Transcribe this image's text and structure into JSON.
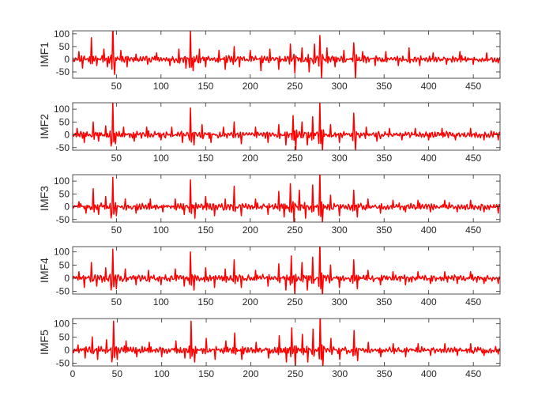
{
  "chart_data": [
    {
      "type": "line",
      "ylabel": "IMF1",
      "xlim": [
        1,
        480
      ],
      "ylim": [
        -75,
        112
      ],
      "xticks": [
        50,
        100,
        150,
        200,
        250,
        300,
        350,
        400,
        450
      ],
      "yticks": [
        100,
        50,
        0,
        -50
      ],
      "color": "#ff0000",
      "peaks": [
        [
          8,
          30
        ],
        [
          12,
          -35
        ],
        [
          22,
          85
        ],
        [
          28,
          -25
        ],
        [
          36,
          40
        ],
        [
          40,
          -30
        ],
        [
          46,
          150
        ],
        [
          48,
          -60
        ],
        [
          55,
          35
        ],
        [
          62,
          -30
        ],
        [
          72,
          20
        ],
        [
          85,
          -20
        ],
        [
          95,
          25
        ],
        [
          110,
          -25
        ],
        [
          120,
          40
        ],
        [
          128,
          -35
        ],
        [
          133,
          115
        ],
        [
          136,
          -45
        ],
        [
          143,
          40
        ],
        [
          150,
          -30
        ],
        [
          165,
          35
        ],
        [
          172,
          -40
        ],
        [
          182,
          50
        ],
        [
          188,
          -30
        ],
        [
          200,
          35
        ],
        [
          212,
          -45
        ],
        [
          222,
          40
        ],
        [
          232,
          -40
        ],
        [
          245,
          60
        ],
        [
          250,
          -55
        ],
        [
          258,
          45
        ],
        [
          266,
          -50
        ],
        [
          272,
          60
        ],
        [
          278,
          100
        ],
        [
          280,
          -75
        ],
        [
          286,
          45
        ],
        [
          295,
          -30
        ],
        [
          305,
          35
        ],
        [
          316,
          70
        ],
        [
          318,
          -75
        ],
        [
          326,
          30
        ],
        [
          340,
          -25
        ],
        [
          352,
          30
        ],
        [
          366,
          -25
        ],
        [
          378,
          45
        ],
        [
          390,
          -25
        ],
        [
          405,
          25
        ],
        [
          420,
          -20
        ],
        [
          435,
          30
        ],
        [
          450,
          -20
        ],
        [
          465,
          25
        ],
        [
          478,
          -15
        ]
      ]
    },
    {
      "type": "line",
      "ylabel": "IMF2",
      "xlim": [
        1,
        480
      ],
      "ylim": [
        -60,
        125
      ],
      "xticks": [
        50,
        100,
        150,
        200,
        250,
        300,
        350,
        400,
        450
      ],
      "yticks": [
        100,
        50,
        0,
        -50
      ],
      "color": "#ff0000",
      "peaks": [
        [
          6,
          25
        ],
        [
          14,
          -30
        ],
        [
          24,
          50
        ],
        [
          30,
          -25
        ],
        [
          38,
          35
        ],
        [
          44,
          -50
        ],
        [
          46,
          130
        ],
        [
          49,
          -35
        ],
        [
          58,
          30
        ],
        [
          70,
          -25
        ],
        [
          84,
          30
        ],
        [
          100,
          -20
        ],
        [
          112,
          30
        ],
        [
          124,
          -30
        ],
        [
          133,
          105
        ],
        [
          137,
          -40
        ],
        [
          146,
          40
        ],
        [
          156,
          -30
        ],
        [
          170,
          30
        ],
        [
          182,
          50
        ],
        [
          190,
          -35
        ],
        [
          206,
          30
        ],
        [
          220,
          -30
        ],
        [
          232,
          40
        ],
        [
          240,
          -40
        ],
        [
          248,
          75
        ],
        [
          251,
          -60
        ],
        [
          258,
          50
        ],
        [
          264,
          -40
        ],
        [
          270,
          70
        ],
        [
          278,
          130
        ],
        [
          281,
          -60
        ],
        [
          290,
          40
        ],
        [
          300,
          -30
        ],
        [
          316,
          90
        ],
        [
          318,
          -60
        ],
        [
          330,
          30
        ],
        [
          342,
          -25
        ],
        [
          356,
          25
        ],
        [
          370,
          -20
        ],
        [
          385,
          25
        ],
        [
          400,
          -20
        ],
        [
          415,
          25
        ],
        [
          430,
          -20
        ],
        [
          447,
          25
        ],
        [
          462,
          -20
        ],
        [
          478,
          -20
        ]
      ]
    },
    {
      "type": "line",
      "ylabel": "IMF3",
      "xlim": [
        1,
        480
      ],
      "ylim": [
        -60,
        125
      ],
      "xticks": [
        50,
        100,
        150,
        200,
        250,
        300,
        350,
        400,
        450
      ],
      "yticks": [
        100,
        50,
        0,
        -50
      ],
      "color": "#ff0000",
      "peaks": [
        [
          8,
          20
        ],
        [
          16,
          -25
        ],
        [
          24,
          70
        ],
        [
          30,
          -30
        ],
        [
          38,
          40
        ],
        [
          44,
          -50
        ],
        [
          46,
          115
        ],
        [
          50,
          -35
        ],
        [
          60,
          30
        ],
        [
          72,
          -25
        ],
        [
          88,
          30
        ],
        [
          102,
          -20
        ],
        [
          116,
          30
        ],
        [
          126,
          -30
        ],
        [
          133,
          105
        ],
        [
          138,
          -45
        ],
        [
          150,
          40
        ],
        [
          160,
          -35
        ],
        [
          172,
          30
        ],
        [
          182,
          80
        ],
        [
          190,
          -35
        ],
        [
          206,
          30
        ],
        [
          220,
          -30
        ],
        [
          232,
          60
        ],
        [
          238,
          -40
        ],
        [
          245,
          90
        ],
        [
          249,
          -60
        ],
        [
          255,
          65
        ],
        [
          262,
          -45
        ],
        [
          270,
          85
        ],
        [
          278,
          140
        ],
        [
          281,
          -60
        ],
        [
          290,
          45
        ],
        [
          300,
          -35
        ],
        [
          316,
          65
        ],
        [
          320,
          -40
        ],
        [
          332,
          30
        ],
        [
          346,
          -25
        ],
        [
          360,
          25
        ],
        [
          374,
          -20
        ],
        [
          388,
          25
        ],
        [
          402,
          -20
        ],
        [
          418,
          25
        ],
        [
          432,
          -20
        ],
        [
          447,
          25
        ],
        [
          462,
          -20
        ],
        [
          478,
          -25
        ]
      ]
    },
    {
      "type": "line",
      "ylabel": "IMF4",
      "xlim": [
        1,
        480
      ],
      "ylim": [
        -60,
        120
      ],
      "xticks": [
        50,
        100,
        150,
        200,
        250,
        300,
        350,
        400,
        450
      ],
      "yticks": [
        100,
        50,
        0,
        -50
      ],
      "color": "#ff0000",
      "peaks": [
        [
          8,
          25
        ],
        [
          14,
          -35
        ],
        [
          22,
          60
        ],
        [
          28,
          -30
        ],
        [
          38,
          40
        ],
        [
          44,
          -50
        ],
        [
          46,
          110
        ],
        [
          50,
          -40
        ],
        [
          60,
          35
        ],
        [
          72,
          -25
        ],
        [
          86,
          30
        ],
        [
          100,
          -25
        ],
        [
          116,
          35
        ],
        [
          126,
          -30
        ],
        [
          133,
          100
        ],
        [
          137,
          -45
        ],
        [
          150,
          40
        ],
        [
          160,
          -35
        ],
        [
          172,
          35
        ],
        [
          182,
          70
        ],
        [
          190,
          -35
        ],
        [
          206,
          30
        ],
        [
          220,
          -30
        ],
        [
          232,
          55
        ],
        [
          240,
          -45
        ],
        [
          246,
          85
        ],
        [
          250,
          -60
        ],
        [
          258,
          60
        ],
        [
          264,
          -45
        ],
        [
          270,
          80
        ],
        [
          278,
          140
        ],
        [
          281,
          -65
        ],
        [
          290,
          50
        ],
        [
          300,
          -35
        ],
        [
          316,
          70
        ],
        [
          320,
          -40
        ],
        [
          332,
          30
        ],
        [
          346,
          -25
        ],
        [
          360,
          25
        ],
        [
          374,
          -25
        ],
        [
          388,
          25
        ],
        [
          402,
          -20
        ],
        [
          418,
          25
        ],
        [
          432,
          -20
        ],
        [
          447,
          25
        ],
        [
          462,
          -20
        ],
        [
          478,
          -20
        ]
      ]
    },
    {
      "type": "line",
      "ylabel": "IMF5",
      "xlim": [
        0,
        480
      ],
      "ylim": [
        -60,
        120
      ],
      "xticks": [
        0,
        50,
        100,
        150,
        200,
        250,
        300,
        350,
        400,
        450
      ],
      "yticks": [
        100,
        50,
        0,
        -50
      ],
      "color": "#ff0000",
      "peaks": [
        [
          6,
          20
        ],
        [
          14,
          -30
        ],
        [
          22,
          50
        ],
        [
          28,
          -35
        ],
        [
          38,
          40
        ],
        [
          44,
          -50
        ],
        [
          46,
          110
        ],
        [
          50,
          -35
        ],
        [
          60,
          35
        ],
        [
          72,
          -25
        ],
        [
          86,
          30
        ],
        [
          100,
          -25
        ],
        [
          116,
          35
        ],
        [
          126,
          -30
        ],
        [
          133,
          110
        ],
        [
          137,
          -45
        ],
        [
          150,
          45
        ],
        [
          160,
          -35
        ],
        [
          172,
          35
        ],
        [
          182,
          65
        ],
        [
          190,
          -35
        ],
        [
          206,
          30
        ],
        [
          220,
          -30
        ],
        [
          232,
          55
        ],
        [
          240,
          -45
        ],
        [
          246,
          85
        ],
        [
          250,
          -60
        ],
        [
          258,
          60
        ],
        [
          264,
          -45
        ],
        [
          270,
          80
        ],
        [
          278,
          140
        ],
        [
          281,
          -65
        ],
        [
          290,
          45
        ],
        [
          300,
          -35
        ],
        [
          316,
          75
        ],
        [
          320,
          -40
        ],
        [
          332,
          30
        ],
        [
          346,
          -25
        ],
        [
          360,
          25
        ],
        [
          374,
          -25
        ],
        [
          388,
          25
        ],
        [
          402,
          -20
        ],
        [
          418,
          25
        ],
        [
          432,
          -20
        ],
        [
          447,
          25
        ],
        [
          462,
          -20
        ],
        [
          478,
          -15
        ]
      ]
    }
  ]
}
